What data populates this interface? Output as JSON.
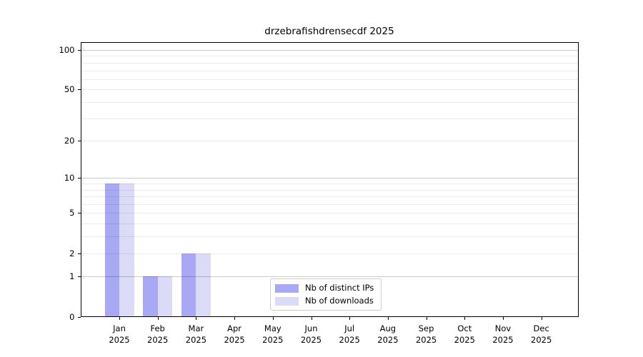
{
  "figure": {
    "title": "drzebrafishdrensecdf 2025"
  },
  "chart_data": {
    "type": "bar",
    "title": "drzebrafishdrensecdf 2025",
    "categories": [
      "Jan",
      "Feb",
      "Mar",
      "Apr",
      "May",
      "Jun",
      "Jul",
      "Aug",
      "Sep",
      "Oct",
      "Nov",
      "Dec"
    ],
    "year": "2025",
    "series": [
      {
        "name": "Nb of distinct IPs",
        "color": "#a8a8f4",
        "values": [
          9,
          1,
          2,
          0,
          0,
          0,
          0,
          0,
          0,
          0,
          0,
          0
        ]
      },
      {
        "name": "Nb of downloads",
        "color": "#dbdbf8",
        "values": [
          9,
          1,
          2,
          0,
          0,
          0,
          0,
          0,
          0,
          0,
          0,
          0
        ]
      }
    ],
    "xlabel": "",
    "ylabel": "",
    "y_axis": {
      "scale": "log1p",
      "lim": [
        0,
        100
      ],
      "tick_labels": [
        "0",
        "1",
        "2",
        "5",
        "10",
        "20",
        "50",
        "100"
      ],
      "ticks": [
        0,
        1,
        2,
        5,
        10,
        20,
        50,
        100
      ],
      "major_gridlines": [
        1,
        10,
        100
      ],
      "minor_gridlines": [
        2,
        3,
        4,
        5,
        6,
        7,
        8,
        9,
        20,
        30,
        40,
        50,
        60,
        70,
        80,
        90
      ]
    },
    "grid": true,
    "legend_position": "lower center, inside axes"
  },
  "colors": {
    "bar_distinct_ips": "#a8a8f4",
    "bar_downloads": "#dbdbf8",
    "major_grid": "#c9c9c9",
    "minor_grid": "#ebebeb",
    "spine": "#000000",
    "background": "#ffffff"
  }
}
